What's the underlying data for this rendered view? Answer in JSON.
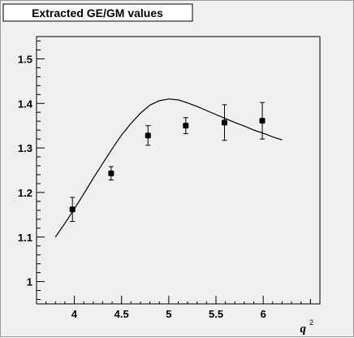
{
  "chart_data": {
    "type": "scatter",
    "title": "Extracted GE/GM values",
    "xlabel": "q",
    "xlabel_superscript": "2",
    "ylabel": "",
    "xlim": [
      3.6,
      6.6
    ],
    "ylim": [
      0.95,
      1.55
    ],
    "xticks": [
      4,
      4.5,
      5,
      5.5,
      6
    ],
    "xtick_labels": [
      "4",
      "4.5",
      "5",
      "5.5",
      "6"
    ],
    "yticks": [
      1,
      1.1,
      1.2,
      1.3,
      1.4,
      1.5
    ],
    "ytick_labels": [
      "1",
      "1.1",
      "1.2",
      "1.3",
      "1.4",
      "1.5"
    ],
    "grid": false,
    "series": [
      {
        "type": "scatter",
        "x": [
          3.98,
          4.39,
          4.78,
          5.18,
          5.59,
          5.99
        ],
        "y": [
          1.162,
          1.243,
          1.328,
          1.35,
          1.357,
          1.361
        ],
        "yerr_low": [
          0.027,
          0.015,
          0.022,
          0.018,
          0.04,
          0.041
        ],
        "yerr_high": [
          0.027,
          0.015,
          0.022,
          0.018,
          0.04,
          0.041
        ]
      },
      {
        "type": "line",
        "x": [
          3.8,
          3.9,
          4.0,
          4.1,
          4.2,
          4.3,
          4.4,
          4.5,
          4.6,
          4.7,
          4.8,
          4.9,
          5.0,
          5.1,
          5.2,
          5.3,
          5.4,
          5.5,
          5.6,
          5.7,
          5.8,
          5.9,
          6.0,
          6.1,
          6.2
        ],
        "y": [
          1.1,
          1.131,
          1.163,
          1.197,
          1.232,
          1.265,
          1.298,
          1.329,
          1.355,
          1.378,
          1.396,
          1.406,
          1.41,
          1.408,
          1.401,
          1.393,
          1.384,
          1.375,
          1.366,
          1.357,
          1.349,
          1.34,
          1.333,
          1.325,
          1.318
        ]
      }
    ]
  }
}
